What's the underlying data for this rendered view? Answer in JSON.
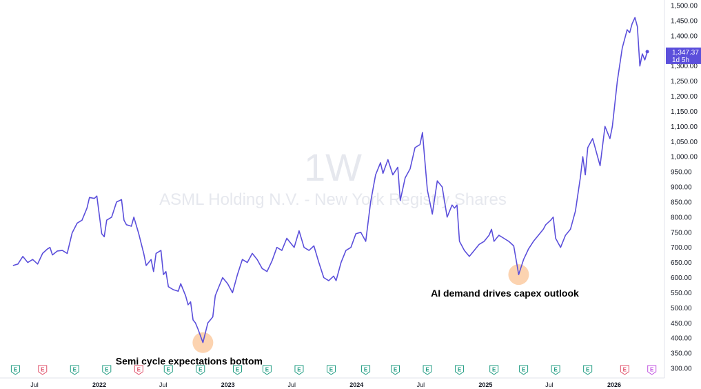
{
  "chart_data": {
    "type": "line",
    "interval": "1W",
    "symbol_name": "ASML Holding N.V. - New York Registry Shares",
    "x_start": "2021-05-01",
    "x_end": "2026-05-15",
    "ylim": [
      285,
      1520
    ],
    "y_ticks": [
      300,
      350,
      400,
      450,
      500,
      550,
      600,
      650,
      700,
      750,
      800,
      850,
      900,
      950,
      1000,
      1050,
      1100,
      1150,
      1200,
      1250,
      1300,
      1350,
      1400,
      1450,
      1500
    ],
    "y_tick_labels": [
      "300.00",
      "350.00",
      "400.00",
      "450.00",
      "500.00",
      "550.00",
      "600.00",
      "650.00",
      "700.00",
      "750.00",
      "800.00",
      "850.00",
      "900.00",
      "950.00",
      "1,000.00",
      "1,050.00",
      "1,100.00",
      "1,150.00",
      "1,200.00",
      "1,250.00",
      "1,300.00",
      "1,350.00",
      "1,400.00",
      "1,450.00",
      "1,500.00"
    ],
    "x_ticks": [
      {
        "date": "2021-07-01",
        "label": "Jul",
        "year": false
      },
      {
        "date": "2022-01-01",
        "label": "2022",
        "year": true
      },
      {
        "date": "2022-07-01",
        "label": "Jul",
        "year": false
      },
      {
        "date": "2023-01-01",
        "label": "2023",
        "year": true
      },
      {
        "date": "2023-07-01",
        "label": "Jul",
        "year": false
      },
      {
        "date": "2024-01-01",
        "label": "2024",
        "year": true
      },
      {
        "date": "2024-07-01",
        "label": "Jul",
        "year": false
      },
      {
        "date": "2025-01-01",
        "label": "2025",
        "year": true
      },
      {
        "date": "2025-07-01",
        "label": "Jul",
        "year": false
      },
      {
        "date": "2026-01-01",
        "label": "2026",
        "year": true
      }
    ],
    "series": [
      {
        "color": "#5b4fdb",
        "points": [
          [
            "2021-05-01",
            640
          ],
          [
            "2021-05-15",
            645
          ],
          [
            "2021-05-29",
            670
          ],
          [
            "2021-06-12",
            650
          ],
          [
            "2021-06-26",
            660
          ],
          [
            "2021-07-10",
            645
          ],
          [
            "2021-07-24",
            680
          ],
          [
            "2021-08-07",
            695
          ],
          [
            "2021-08-14",
            700
          ],
          [
            "2021-08-21",
            675
          ],
          [
            "2021-09-04",
            688
          ],
          [
            "2021-09-18",
            690
          ],
          [
            "2021-10-02",
            680
          ],
          [
            "2021-10-16",
            748
          ],
          [
            "2021-10-30",
            780
          ],
          [
            "2021-11-13",
            790
          ],
          [
            "2021-11-27",
            830
          ],
          [
            "2021-12-04",
            865
          ],
          [
            "2021-12-18",
            862
          ],
          [
            "2021-12-25",
            870
          ],
          [
            "2022-01-08",
            745
          ],
          [
            "2022-01-15",
            735
          ],
          [
            "2022-01-22",
            790
          ],
          [
            "2022-02-05",
            800
          ],
          [
            "2022-02-19",
            850
          ],
          [
            "2022-03-05",
            858
          ],
          [
            "2022-03-12",
            790
          ],
          [
            "2022-03-19",
            775
          ],
          [
            "2022-04-02",
            770
          ],
          [
            "2022-04-09",
            800
          ],
          [
            "2022-04-23",
            745
          ],
          [
            "2022-05-07",
            680
          ],
          [
            "2022-05-14",
            640
          ],
          [
            "2022-05-28",
            660
          ],
          [
            "2022-06-04",
            620
          ],
          [
            "2022-06-11",
            680
          ],
          [
            "2022-06-25",
            690
          ],
          [
            "2022-07-02",
            610
          ],
          [
            "2022-07-09",
            620
          ],
          [
            "2022-07-16",
            570
          ],
          [
            "2022-07-30",
            560
          ],
          [
            "2022-08-13",
            555
          ],
          [
            "2022-08-20",
            580
          ],
          [
            "2022-09-03",
            540
          ],
          [
            "2022-09-10",
            510
          ],
          [
            "2022-09-17",
            520
          ],
          [
            "2022-09-24",
            460
          ],
          [
            "2022-10-01",
            450
          ],
          [
            "2022-10-08",
            430
          ],
          [
            "2022-10-22",
            385
          ],
          [
            "2022-11-05",
            450
          ],
          [
            "2022-11-19",
            470
          ],
          [
            "2022-11-26",
            540
          ],
          [
            "2022-12-03",
            560
          ],
          [
            "2022-12-17",
            600
          ],
          [
            "2022-12-31",
            580
          ],
          [
            "2023-01-14",
            550
          ],
          [
            "2023-01-28",
            610
          ],
          [
            "2023-02-11",
            660
          ],
          [
            "2023-02-25",
            650
          ],
          [
            "2023-03-11",
            680
          ],
          [
            "2023-03-25",
            660
          ],
          [
            "2023-04-08",
            630
          ],
          [
            "2023-04-22",
            620
          ],
          [
            "2023-05-06",
            655
          ],
          [
            "2023-05-20",
            700
          ],
          [
            "2023-06-03",
            690
          ],
          [
            "2023-06-17",
            730
          ],
          [
            "2023-06-24",
            720
          ],
          [
            "2023-07-08",
            700
          ],
          [
            "2023-07-22",
            755
          ],
          [
            "2023-08-05",
            700
          ],
          [
            "2023-08-19",
            690
          ],
          [
            "2023-09-02",
            705
          ],
          [
            "2023-09-16",
            650
          ],
          [
            "2023-09-30",
            600
          ],
          [
            "2023-10-14",
            590
          ],
          [
            "2023-10-28",
            605
          ],
          [
            "2023-11-04",
            590
          ],
          [
            "2023-11-18",
            650
          ],
          [
            "2023-12-02",
            690
          ],
          [
            "2023-12-16",
            700
          ],
          [
            "2023-12-30",
            745
          ],
          [
            "2024-01-13",
            750
          ],
          [
            "2024-01-27",
            720
          ],
          [
            "2024-02-10",
            850
          ],
          [
            "2024-02-24",
            940
          ],
          [
            "2024-03-09",
            980
          ],
          [
            "2024-03-16",
            945
          ],
          [
            "2024-03-30",
            990
          ],
          [
            "2024-04-13",
            940
          ],
          [
            "2024-04-27",
            965
          ],
          [
            "2024-05-04",
            855
          ],
          [
            "2024-05-18",
            930
          ],
          [
            "2024-06-01",
            960
          ],
          [
            "2024-06-15",
            1030
          ],
          [
            "2024-06-29",
            1040
          ],
          [
            "2024-07-06",
            1080
          ],
          [
            "2024-07-20",
            890
          ],
          [
            "2024-08-03",
            810
          ],
          [
            "2024-08-17",
            920
          ],
          [
            "2024-08-31",
            900
          ],
          [
            "2024-09-14",
            800
          ],
          [
            "2024-09-28",
            840
          ],
          [
            "2024-10-05",
            830
          ],
          [
            "2024-10-12",
            840
          ],
          [
            "2024-10-19",
            720
          ],
          [
            "2024-11-02",
            690
          ],
          [
            "2024-11-16",
            670
          ],
          [
            "2024-11-30",
            690
          ],
          [
            "2024-12-14",
            710
          ],
          [
            "2024-12-28",
            720
          ],
          [
            "2025-01-11",
            740
          ],
          [
            "2025-01-18",
            760
          ],
          [
            "2025-01-25",
            720
          ],
          [
            "2025-02-08",
            740
          ],
          [
            "2025-02-22",
            730
          ],
          [
            "2025-03-08",
            720
          ],
          [
            "2025-03-22",
            705
          ],
          [
            "2025-04-05",
            610
          ],
          [
            "2025-04-19",
            660
          ],
          [
            "2025-05-03",
            695
          ],
          [
            "2025-05-17",
            720
          ],
          [
            "2025-05-31",
            740
          ],
          [
            "2025-06-14",
            760
          ],
          [
            "2025-06-21",
            775
          ],
          [
            "2025-07-05",
            790
          ],
          [
            "2025-07-12",
            800
          ],
          [
            "2025-07-19",
            730
          ],
          [
            "2025-08-02",
            700
          ],
          [
            "2025-08-16",
            740
          ],
          [
            "2025-08-30",
            760
          ],
          [
            "2025-09-13",
            820
          ],
          [
            "2025-09-27",
            930
          ],
          [
            "2025-10-04",
            1000
          ],
          [
            "2025-10-11",
            940
          ],
          [
            "2025-10-18",
            1030
          ],
          [
            "2025-11-01",
            1060
          ],
          [
            "2025-11-15",
            1000
          ],
          [
            "2025-11-22",
            970
          ],
          [
            "2025-12-06",
            1100
          ],
          [
            "2025-12-20",
            1060
          ],
          [
            "2025-12-27",
            1100
          ],
          [
            "2026-01-10",
            1250
          ],
          [
            "2026-01-24",
            1360
          ],
          [
            "2026-02-07",
            1420
          ],
          [
            "2026-02-14",
            1410
          ],
          [
            "2026-02-21",
            1440
          ],
          [
            "2026-03-01",
            1460
          ],
          [
            "2026-03-08",
            1430
          ],
          [
            "2026-03-15",
            1300
          ],
          [
            "2026-03-22",
            1340
          ],
          [
            "2026-03-29",
            1320
          ],
          [
            "2026-04-05",
            1347.37
          ]
        ]
      }
    ],
    "last_price": {
      "value": 1347.37,
      "label": "1,347.37",
      "sublabel": "1d 5h",
      "color": "#5b4fdb"
    },
    "annotations": [
      {
        "date": "2022-10-22",
        "value": 385,
        "text": "Semi cycle expectations bottom",
        "text_position": "below"
      },
      {
        "date": "2025-04-05",
        "value": 610,
        "text": "AI demand drives capex outlook",
        "text_position": "below"
      }
    ],
    "events": [
      {
        "date": "2021-05-08",
        "label": "E",
        "color": "#1f9c82"
      },
      {
        "date": "2021-07-24",
        "label": "E",
        "color": "#e0506a"
      },
      {
        "date": "2021-10-23",
        "label": "E",
        "color": "#1f9c82"
      },
      {
        "date": "2022-01-22",
        "label": "E",
        "color": "#1f9c82"
      },
      {
        "date": "2022-04-23",
        "label": "E",
        "color": "#e0506a"
      },
      {
        "date": "2022-07-16",
        "label": "E",
        "color": "#1f9c82"
      },
      {
        "date": "2022-10-15",
        "label": "E",
        "color": "#1f9c82"
      },
      {
        "date": "2023-01-28",
        "label": "E",
        "color": "#1f9c82"
      },
      {
        "date": "2023-04-22",
        "label": "E",
        "color": "#1f9c82"
      },
      {
        "date": "2023-07-22",
        "label": "E",
        "color": "#1f9c82"
      },
      {
        "date": "2023-10-21",
        "label": "E",
        "color": "#1f9c82"
      },
      {
        "date": "2024-01-27",
        "label": "E",
        "color": "#1f9c82"
      },
      {
        "date": "2024-04-20",
        "label": "E",
        "color": "#1f9c82"
      },
      {
        "date": "2024-07-20",
        "label": "E",
        "color": "#1f9c82"
      },
      {
        "date": "2024-10-19",
        "label": "E",
        "color": "#1f9c82"
      },
      {
        "date": "2025-01-25",
        "label": "E",
        "color": "#1f9c82"
      },
      {
        "date": "2025-04-19",
        "label": "E",
        "color": "#1f9c82"
      },
      {
        "date": "2025-07-19",
        "label": "E",
        "color": "#1f9c82"
      },
      {
        "date": "2025-10-18",
        "label": "E",
        "color": "#1f9c82"
      },
      {
        "date": "2026-01-31",
        "label": "E",
        "color": "#e0506a"
      },
      {
        "date": "2026-04-18",
        "label": "E",
        "color": "#c050e0"
      }
    ],
    "grid": false,
    "legend": "none"
  }
}
